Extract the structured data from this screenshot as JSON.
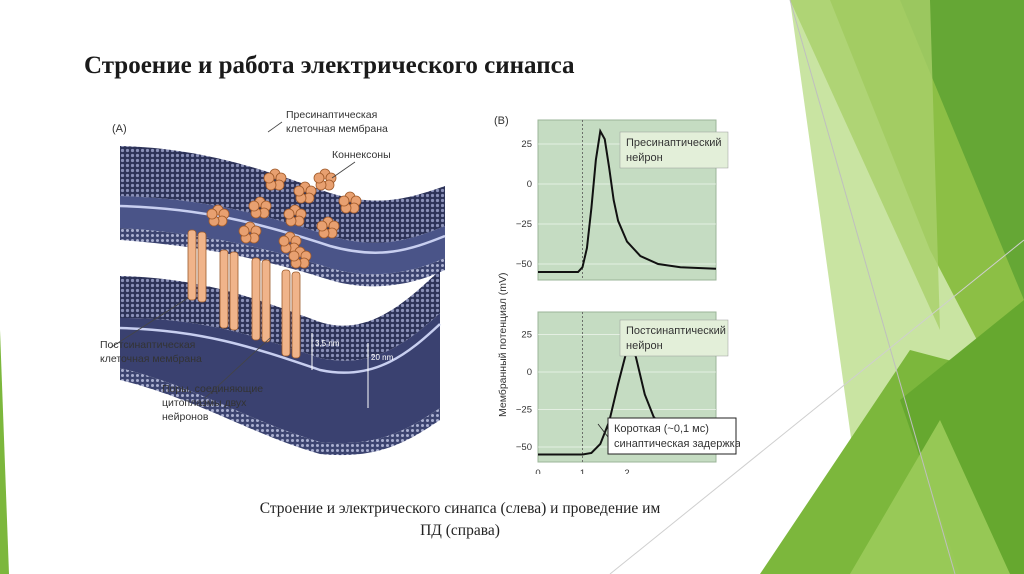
{
  "slide": {
    "title": "Строение и работа электрического синапса",
    "caption_line1": "Строение и электрического синапса (слева) и проведение им",
    "caption_line2": "ПД (справа)"
  },
  "panel_a": {
    "panel_label": "(A)",
    "presynaptic_membrane_1": "Пресинаптическая",
    "presynaptic_membrane_2": "клеточная мембрана",
    "connexons": "Коннексоны",
    "postsynaptic_membrane_1": "Постсинаптическая",
    "postsynaptic_membrane_2": "клеточная мембрана",
    "pores_1": "Поры, соединяющие",
    "pores_2": "цитоплазмы двух",
    "pores_3": "нейронов",
    "dim_small": "3,5 nm",
    "dim_large": "20 nm"
  },
  "panel_b": {
    "panel_label": "(B)",
    "ylabel": "Мембранный потенциал (mV)",
    "top_box_1": "Пресинаптический",
    "top_box_2": "нейрон",
    "bottom_box_1": "Постсинаптический",
    "bottom_box_2": "нейрон",
    "delay_box_1": "Короткая (~0,1 мс)",
    "delay_box_2": "синаптическая задержка",
    "colors": {
      "plot_bg": "#c5dcc2",
      "trace": "#111111",
      "box_bg": "#e3efd9"
    }
  },
  "chart_data": [
    {
      "type": "line",
      "title": "Пресинаптический нейрон",
      "ylabel": "Мембранный потенциал (mV)",
      "yticks": [
        "25",
        "0",
        "−25",
        "−50"
      ],
      "ylim": [
        -60,
        40
      ],
      "xlim": [
        0,
        4
      ],
      "series": [
        {
          "name": "Пресинаптический нейрон",
          "x": [
            0,
            0.9,
            1.0,
            1.1,
            1.2,
            1.3,
            1.4,
            1.5,
            1.6,
            1.7,
            1.8,
            2.0,
            2.3,
            2.7,
            3.2,
            4.0
          ],
          "y": [
            -55,
            -55,
            -52,
            -40,
            -15,
            15,
            33,
            28,
            10,
            -10,
            -23,
            -36,
            -45,
            -50,
            -52,
            -53
          ]
        }
      ]
    },
    {
      "type": "line",
      "title": "Постсинаптический нейрон",
      "ylabel": "Мембранный потенциал (mV)",
      "yticks": [
        "25",
        "0",
        "−25",
        "−50"
      ],
      "xticks": [
        "0",
        "1",
        "2"
      ],
      "ylim": [
        -60,
        40
      ],
      "xlim": [
        0,
        4
      ],
      "series": [
        {
          "name": "Постсинаптический нейрон",
          "x": [
            0,
            1.0,
            1.2,
            1.4,
            1.6,
            1.8,
            2.0,
            2.1,
            2.2,
            2.4,
            2.6,
            3.0,
            3.5,
            4.0
          ],
          "y": [
            -55,
            -55,
            -54,
            -48,
            -33,
            -8,
            15,
            18,
            10,
            -15,
            -30,
            -42,
            -46,
            -47
          ]
        }
      ]
    }
  ]
}
